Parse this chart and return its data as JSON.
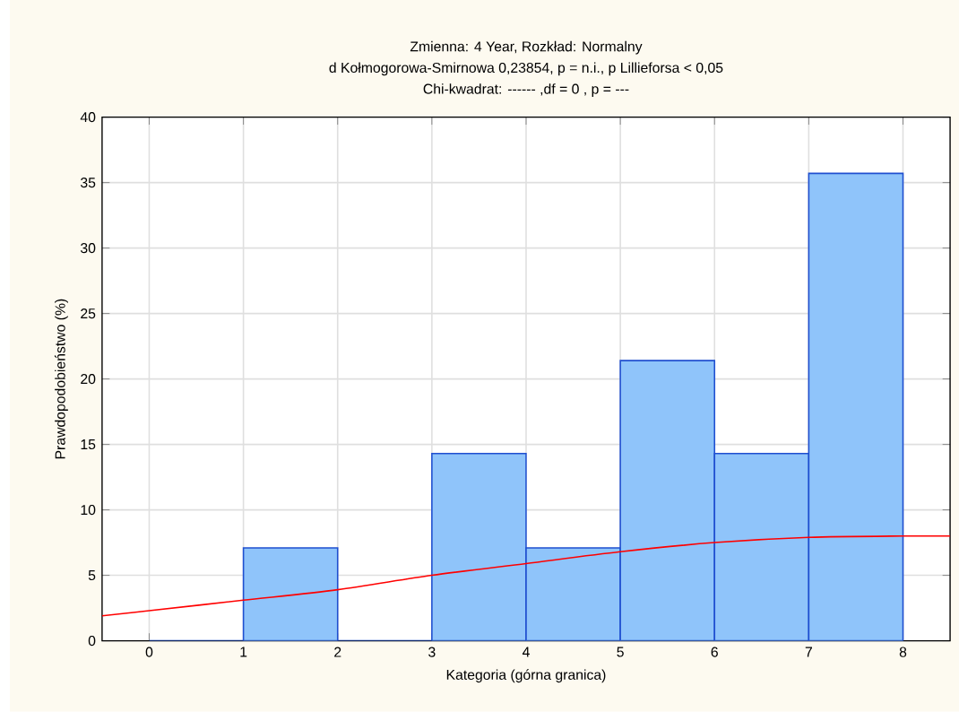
{
  "chart_data": {
    "type": "histogram",
    "title": "Zmienna:  4 Year, Rozkład: Normalny",
    "subtitle": "d Kołmogorowa-Smirnowa 0,23854, p = n.i., p Lillieforsa < 0,05",
    "annotations": [
      "Chi-kwadrat:  ------ ,df =  0 , p = ---"
    ],
    "xlabel": "Kategoria (górna granica)",
    "ylabel": "Prawdopodobieństwo (%)",
    "bins": [
      0,
      1,
      2,
      3,
      4,
      5,
      6,
      7,
      8
    ],
    "values": [
      0,
      7.1,
      0,
      14.3,
      7.1,
      21.4,
      14.3,
      35.7
    ],
    "color": "#8fc4fa",
    "series": [
      {
        "type": "line",
        "color": "#ff0000",
        "x": [
          -0.5,
          0,
          1,
          2,
          3,
          4,
          5,
          6,
          7,
          8,
          8.5
        ],
        "values": [
          1.9,
          2.3,
          3.1,
          3.9,
          5.0,
          5.9,
          6.8,
          7.5,
          7.9,
          8.0,
          8.0
        ]
      }
    ],
    "xlim": [
      -0.5,
      8.5
    ],
    "xticks": [
      0,
      1,
      2,
      3,
      4,
      5,
      6,
      7,
      8
    ],
    "ylim": [
      0,
      40
    ],
    "yticks": [
      0,
      5,
      10,
      15,
      20,
      25,
      30,
      35,
      40
    ],
    "grid": true
  }
}
